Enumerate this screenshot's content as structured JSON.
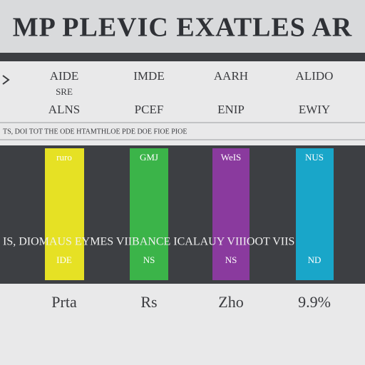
{
  "header": {
    "title": "MP PLEVIC EXATLES AR"
  },
  "columns": [
    {
      "head": [
        "AIDE",
        "SRE",
        "ALNS"
      ],
      "top": "ruro",
      "bottom": "IDE",
      "foot": "Prta"
    },
    {
      "head": [
        "IMDE",
        "PCEF"
      ],
      "top": "GMJ",
      "bottom": "NS",
      "foot": "Rs"
    },
    {
      "head": [
        "AARH",
        "ENIP"
      ],
      "top": "WeIS",
      "bottom": "NS",
      "foot": "Zho"
    },
    {
      "head": [
        "ALIDO",
        "EWIY"
      ],
      "top": "NUS",
      "bottom": "ND",
      "foot": "9.9%"
    }
  ],
  "info_row": "TS, DOI TOT THE ODE HTAMTHLOE PDE DOE FIOE PIOE",
  "panel_row": "IS, DIOMAUS EYMES VIIBANCE ICALAUY VIIIOOT VIIS"
}
